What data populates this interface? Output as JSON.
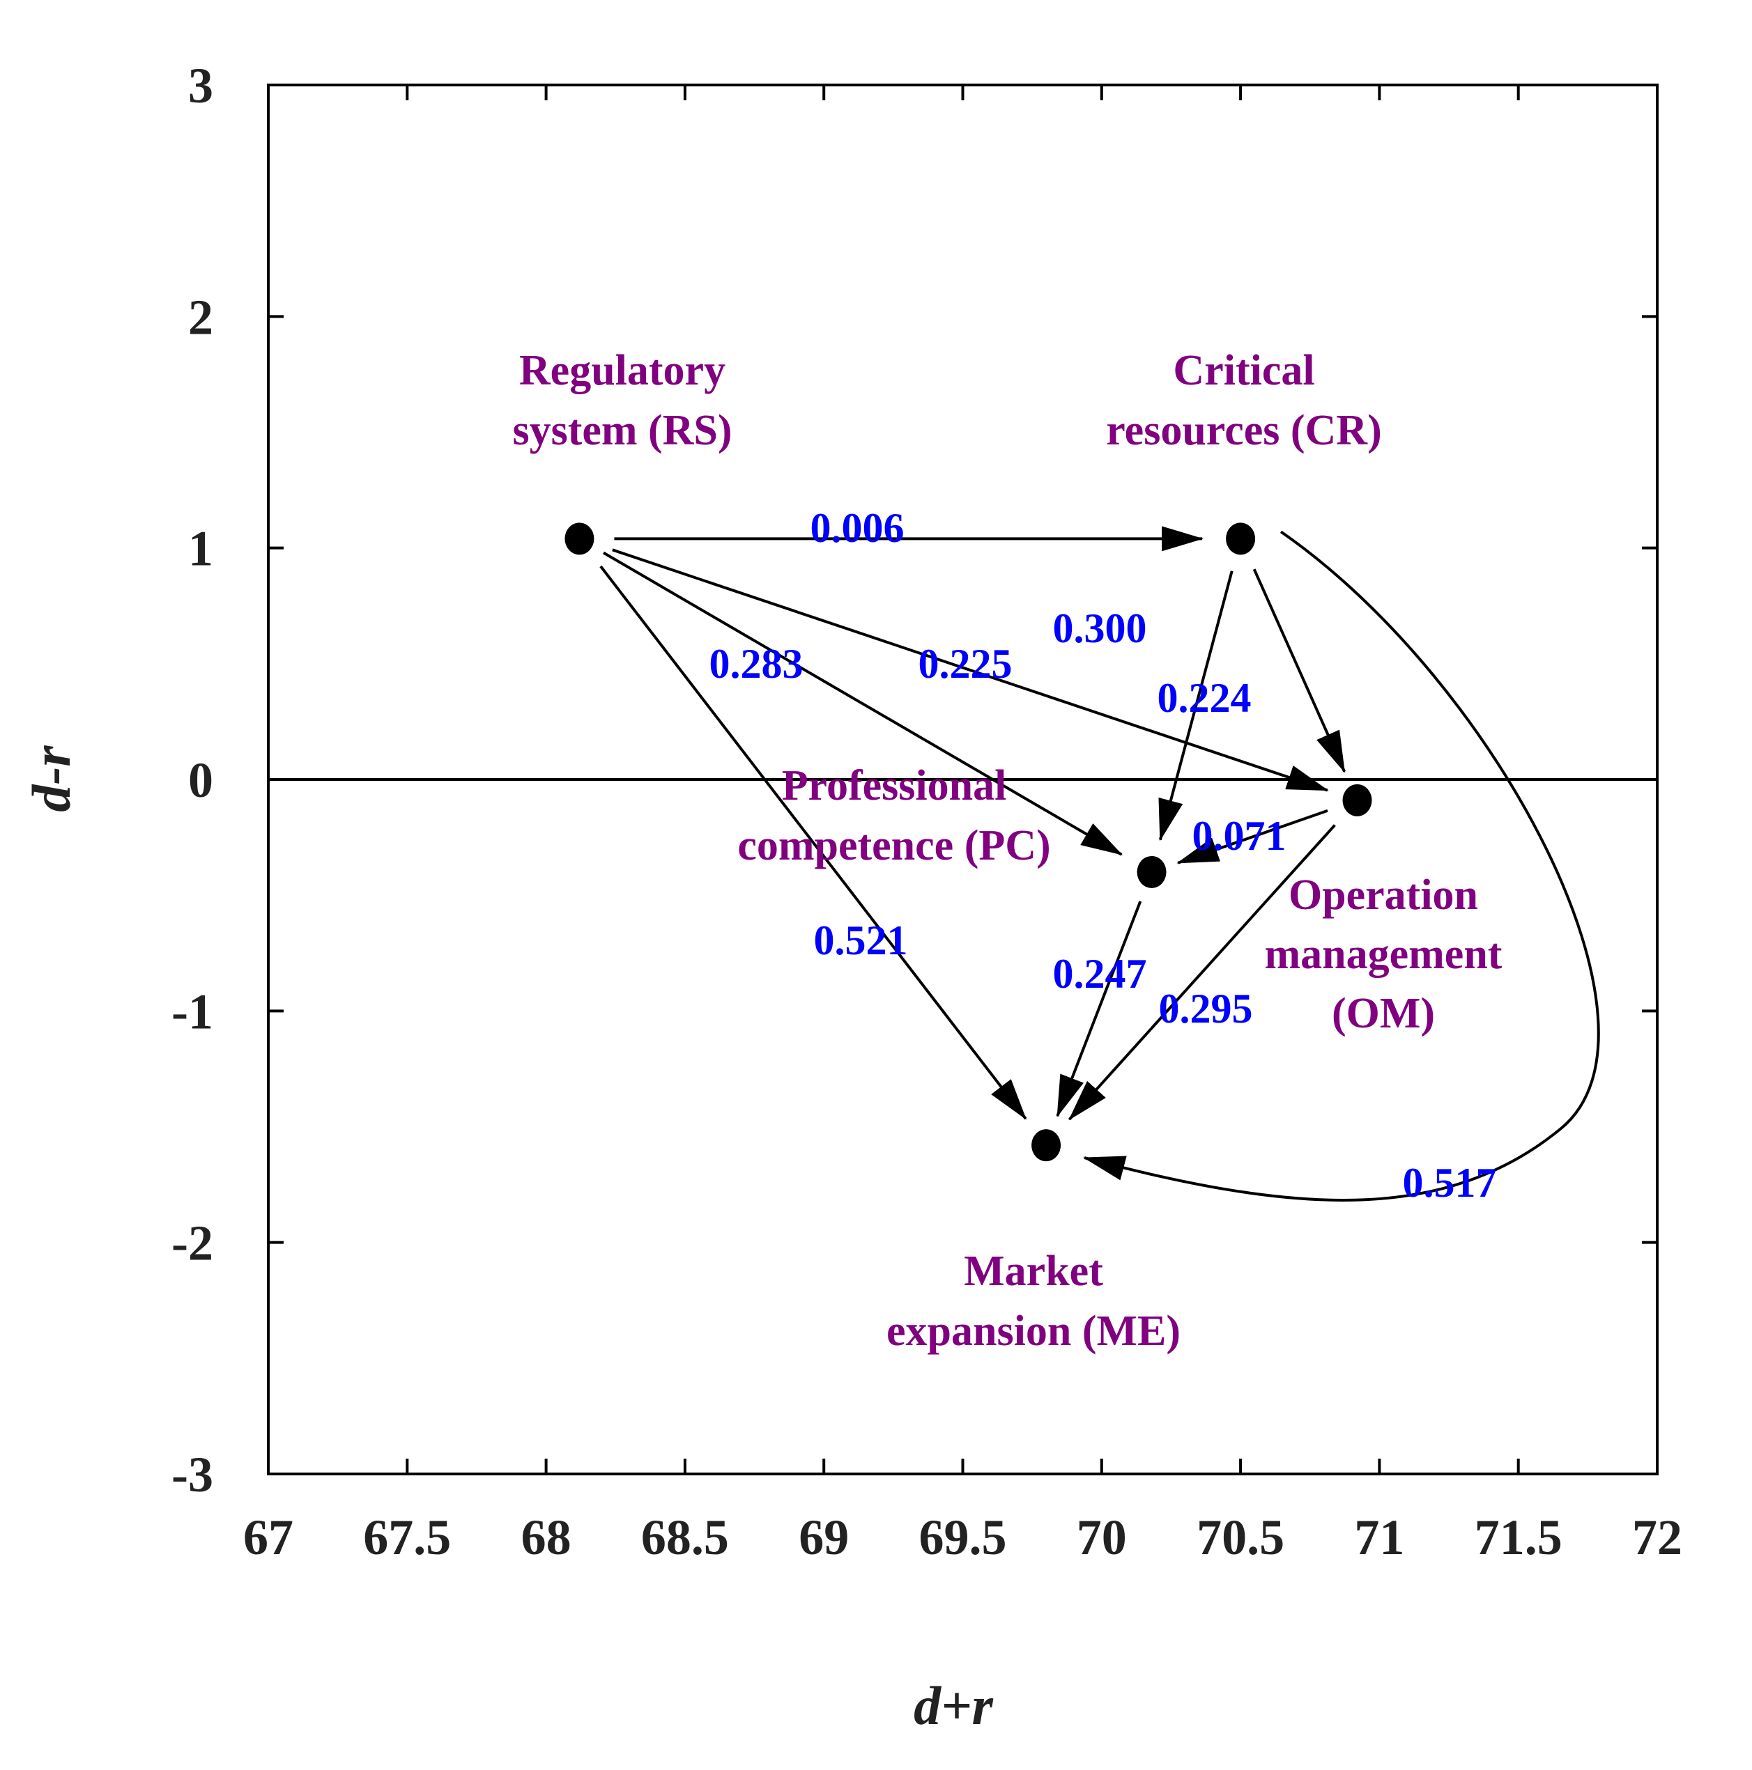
{
  "colors": {
    "node_label": "#800080",
    "edge_label": "#0000ff",
    "axis": "#000000",
    "text": "#222222"
  },
  "chart_data": {
    "type": "scatter",
    "title": "",
    "xlabel": "d+r",
    "ylabel": "d-r",
    "xlim": [
      67,
      72
    ],
    "ylim": [
      -3,
      3
    ],
    "xticks": [
      "67",
      "67.5",
      "68",
      "68.5",
      "69",
      "69.5",
      "70",
      "70.5",
      "71",
      "71.5",
      "72"
    ],
    "yticks": [
      "-3",
      "-2",
      "-1",
      "0",
      "1",
      "2",
      "3"
    ],
    "reference_line_y": 0,
    "nodes": [
      {
        "id": "RS",
        "label_lines": [
          "Regulatory",
          "system (RS)"
        ],
        "x": 68.12,
        "y": 1.04
      },
      {
        "id": "CR",
        "label_lines": [
          "Critical",
          "resources (CR)"
        ],
        "x": 70.5,
        "y": 1.04
      },
      {
        "id": "OM",
        "label_lines": [
          "Operation",
          "management",
          "(OM)"
        ],
        "x": 70.92,
        "y": -0.09
      },
      {
        "id": "PC",
        "label_lines": [
          "Professional",
          "competence (PC)"
        ],
        "x": 70.18,
        "y": -0.4
      },
      {
        "id": "ME",
        "label_lines": [
          "Market",
          "expansion (ME)"
        ],
        "x": 69.8,
        "y": -1.58
      }
    ],
    "edges": [
      {
        "from": "RS",
        "to": "CR",
        "weight": "0.006"
      },
      {
        "from": "RS",
        "to": "OM",
        "weight": "0.225"
      },
      {
        "from": "RS",
        "to": "PC",
        "weight": "0.283"
      },
      {
        "from": "RS",
        "to": "ME",
        "weight": "0.521"
      },
      {
        "from": "CR",
        "to": "PC",
        "weight": "0.300"
      },
      {
        "from": "CR",
        "to": "OM",
        "weight": "0.224"
      },
      {
        "from": "CR",
        "to": "ME",
        "weight": "0.517"
      },
      {
        "from": "OM",
        "to": "PC",
        "weight": "0.071"
      },
      {
        "from": "OM",
        "to": "ME",
        "weight": "0.295"
      },
      {
        "from": "PC",
        "to": "ME",
        "weight": "0.247"
      }
    ]
  }
}
